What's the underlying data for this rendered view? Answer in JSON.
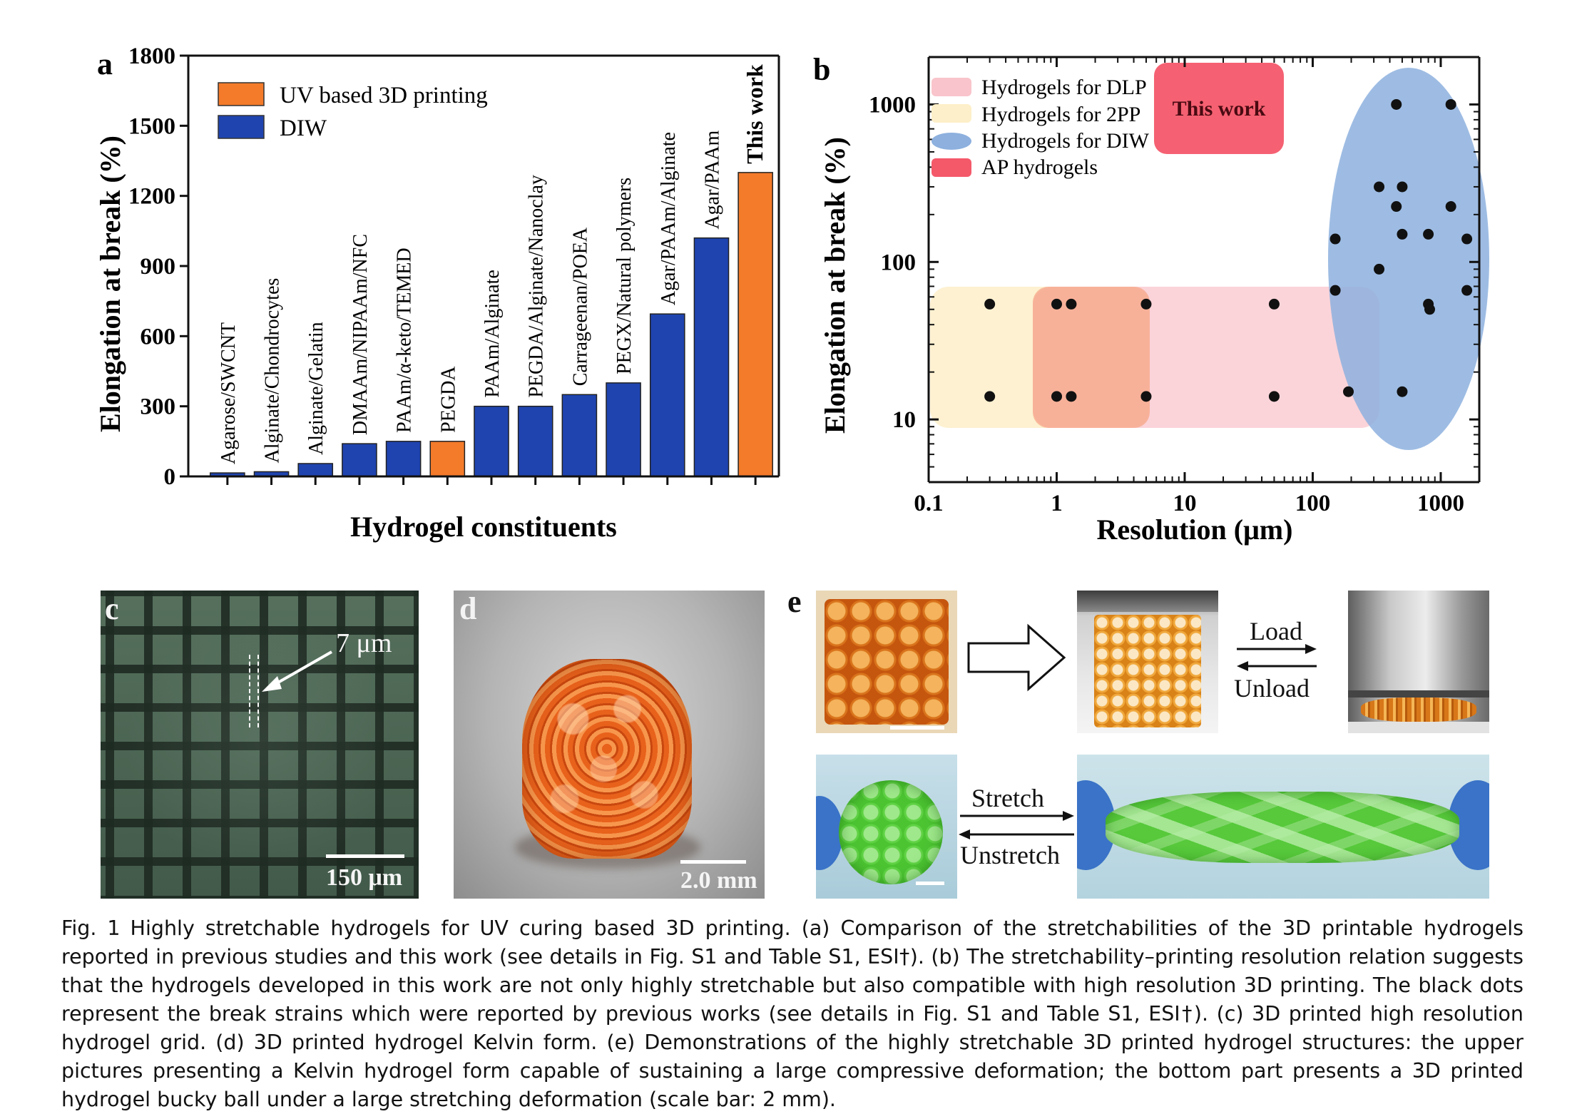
{
  "panel_a": {
    "letter": "a",
    "legend": [
      "UV based 3D printing",
      "DIW"
    ],
    "ylabel": "Elongation at break (%)",
    "xlabel": "Hydrogel constituents"
  },
  "panel_b": {
    "letter": "b",
    "legend": [
      "Hydrogels for DLP",
      "Hydrogels for 2PP",
      "Hydrogels for DIW",
      "AP hydrogels"
    ],
    "this_work": "This work",
    "ylabel": "Elongation at break (%)",
    "xlabel": "Resolution (μm)"
  },
  "chart_data": [
    {
      "type": "bar",
      "xlabel": "Hydrogel constituents",
      "ylabel": "Elongation at break (%)",
      "ylim": [
        0,
        1800
      ],
      "yticks": [
        0,
        300,
        600,
        900,
        1200,
        1500,
        1800
      ],
      "categories": [
        "Agarose/SWCNT",
        "Alginate/Chondrocytes",
        "Alginate/Gelatin",
        "DMAAm/NIPAAm/NFC",
        "PAAm/α-keto/TEMED",
        "PEGDA",
        "PAAm/Alginate",
        "PEGDA/Alginate/Nanoclay",
        "Carrageenan/POEA",
        "PEGX/Natural polymers",
        "Agar/PAAm/Alginate",
        "Agar/PAAm",
        "This work"
      ],
      "values": [
        15,
        20,
        55,
        140,
        150,
        150,
        300,
        300,
        350,
        400,
        695,
        1020,
        1300
      ],
      "groups": [
        "DIW",
        "DIW",
        "DIW",
        "DIW",
        "DIW",
        "UV based 3D printing",
        "DIW",
        "DIW",
        "DIW",
        "DIW",
        "DIW",
        "DIW",
        "UV based 3D printing"
      ],
      "legend": [
        "UV based 3D printing",
        "DIW"
      ],
      "legend_position": "top-left",
      "colors": {
        "UV based 3D printing": "#f47b2a",
        "DIW": "#1f44b0"
      }
    },
    {
      "type": "scatter",
      "xlabel": "Resolution (μm)",
      "ylabel": "Elongation at break (%)",
      "xscale": "log",
      "yscale": "log",
      "xlim": [
        0.1,
        2000
      ],
      "ylim": [
        4,
        2000
      ],
      "xticks": [
        0.1,
        1,
        10,
        100,
        1000
      ],
      "xticklabels": [
        "0.1",
        "1",
        "10",
        "100",
        "1000"
      ],
      "yticks": [
        10,
        100,
        1000
      ],
      "yticklabels": [
        "10",
        "100",
        "1000"
      ],
      "points": [
        [
          0.3,
          54
        ],
        [
          0.3,
          14
        ],
        [
          1,
          54
        ],
        [
          1.3,
          54
        ],
        [
          5,
          54
        ],
        [
          1,
          14
        ],
        [
          1.3,
          14
        ],
        [
          5,
          14
        ],
        [
          50,
          54
        ],
        [
          50,
          14
        ],
        [
          450,
          1000
        ],
        [
          1200,
          1000
        ],
        [
          330,
          300
        ],
        [
          500,
          300
        ],
        [
          450,
          225
        ],
        [
          1200,
          225
        ],
        [
          150,
          140
        ],
        [
          500,
          150
        ],
        [
          800,
          150
        ],
        [
          1600,
          140
        ],
        [
          330,
          90
        ],
        [
          150,
          66
        ],
        [
          800,
          54
        ],
        [
          820,
          50
        ],
        [
          1600,
          66
        ],
        [
          190,
          15
        ],
        [
          500,
          15
        ]
      ],
      "regions": [
        {
          "name": "Hydrogels for 2PP",
          "color": "#fdf1cf",
          "x": [
            0.1,
            5
          ],
          "y": [
            10,
            70
          ]
        },
        {
          "name": "Hydrogels for DLP",
          "color": "#f9cfd4",
          "x": [
            1,
            70
          ],
          "y": [
            10,
            70
          ]
        },
        {
          "name": "Hydrogels for DIW",
          "color": "#8db0de",
          "shape": "ellipse"
        },
        {
          "name": "AP hydrogels",
          "color": "#f4596a"
        }
      ],
      "legend": [
        "Hydrogels for DLP",
        "Hydrogels for 2PP",
        "Hydrogels for DIW",
        "AP hydrogels"
      ],
      "legend_position": "top-left",
      "annotation": "This work"
    }
  ],
  "panel_c": {
    "letter": "c",
    "marker": "7 μm",
    "scale": "150 μm"
  },
  "panel_d": {
    "letter": "d",
    "scale": "2.0 mm"
  },
  "panel_e": {
    "letter": "e",
    "load": "Load",
    "unload": "Unload",
    "stretch": "Stretch",
    "unstretch": "Unstretch"
  },
  "caption": {
    "label": "Fig. 1",
    "text": "Highly stretchable hydrogels for UV curing based 3D printing. (a) Comparison of the stretchabilities of the 3D printable hydrogels reported in previous studies and this work (see details in Fig. S1 and Table S1, ESI†). (b) The stretchability–printing resolution relation suggests that the hydrogels developed in this work are not only highly stretchable but also compatible with high resolution 3D printing. The black dots represent the break strains which were reported by previous works (see details in Fig. S1 and Table S1, ESI†). (c) 3D printed high resolution hydrogel grid. (d) 3D printed hydrogel Kelvin form. (e) Demonstrations of the highly stretchable 3D printed hydrogel structures: the upper pictures presenting a Kelvin hydrogel form capable of sustaining a large compressive deformation; the bottom part presents a 3D printed hydrogel bucky ball under a large stretching deformation (scale bar: 2 mm)."
  }
}
